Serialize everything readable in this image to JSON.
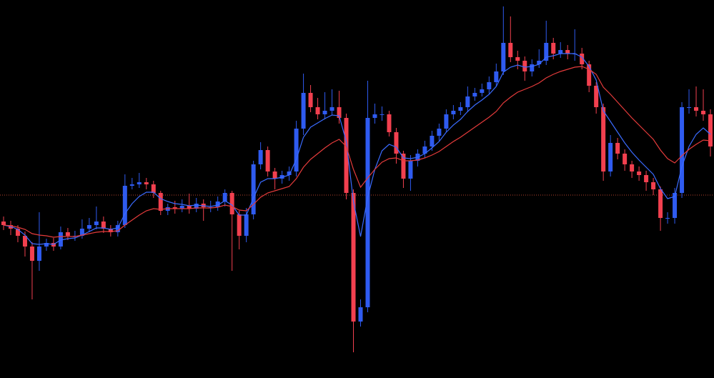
{
  "chart_data": {
    "type": "candlestick",
    "open": [
      219,
      214,
      209,
      199,
      184,
      164,
      184,
      189,
      184,
      204,
      199,
      199,
      209,
      214,
      219,
      209,
      204,
      214,
      269,
      271,
      274,
      271,
      259,
      234,
      239,
      237,
      241,
      237,
      244,
      239,
      239,
      247,
      259,
      229,
      199,
      229,
      299,
      319,
      289,
      279,
      284,
      289,
      349,
      399,
      379,
      369,
      374,
      379,
      364,
      259,
      79,
      99,
      364,
      369,
      369,
      344,
      314,
      279,
      304,
      314,
      324,
      339,
      349,
      369,
      374,
      379,
      394,
      399,
      404,
      414,
      429,
      469,
      449,
      444,
      429,
      439,
      444,
      469,
      454,
      459,
      454,
      454,
      439,
      409,
      379,
      289,
      329,
      314,
      299,
      289,
      284,
      274,
      264,
      224,
      224,
      259,
      379,
      379,
      374,
      369
    ],
    "high": [
      226,
      220,
      214,
      205,
      190,
      232,
      195,
      196,
      212,
      210,
      206,
      222,
      224,
      240,
      226,
      214,
      220,
      285,
      280,
      287,
      280,
      276,
      262,
      244,
      248,
      250,
      258,
      252,
      250,
      248,
      254,
      264,
      262,
      234,
      238,
      304,
      330,
      324,
      294,
      290,
      296,
      360,
      426,
      410,
      392,
      400,
      404,
      402,
      370,
      264,
      110,
      416,
      384,
      380,
      374,
      350,
      318,
      312,
      320,
      332,
      346,
      356,
      376,
      382,
      386,
      408,
      406,
      412,
      422,
      440,
      520,
      506,
      458,
      450,
      446,
      460,
      500,
      476,
      470,
      466,
      488,
      462,
      444,
      414,
      384,
      340,
      336,
      320,
      304,
      296,
      290,
      280,
      268,
      232,
      266,
      386,
      404,
      408,
      404,
      376
    ],
    "low": [
      207,
      200,
      190,
      170,
      110,
      150,
      178,
      178,
      180,
      193,
      192,
      195,
      204,
      208,
      203,
      198,
      198,
      210,
      264,
      266,
      264,
      252,
      228,
      228,
      230,
      232,
      230,
      232,
      220,
      232,
      234,
      240,
      150,
      180,
      190,
      222,
      292,
      282,
      264,
      272,
      276,
      282,
      340,
      372,
      362,
      362,
      368,
      356,
      250,
      36,
      72,
      92,
      356,
      360,
      338,
      300,
      266,
      262,
      296,
      308,
      318,
      332,
      344,
      362,
      368,
      372,
      388,
      394,
      398,
      408,
      424,
      442,
      432,
      416,
      422,
      434,
      438,
      446,
      448,
      446,
      444,
      432,
      400,
      370,
      276,
      282,
      306,
      290,
      280,
      276,
      262,
      256,
      206,
      216,
      216,
      252,
      370,
      366,
      360,
      310
    ],
    "close": [
      214,
      209,
      199,
      184,
      164,
      184,
      189,
      184,
      204,
      199,
      199,
      209,
      214,
      219,
      209,
      204,
      214,
      269,
      271,
      274,
      271,
      259,
      234,
      239,
      237,
      241,
      237,
      244,
      239,
      239,
      247,
      259,
      229,
      199,
      229,
      299,
      319,
      289,
      279,
      284,
      289,
      349,
      399,
      379,
      369,
      374,
      379,
      364,
      259,
      79,
      99,
      364,
      369,
      369,
      344,
      314,
      279,
      304,
      314,
      324,
      339,
      349,
      369,
      374,
      379,
      394,
      399,
      404,
      414,
      429,
      469,
      449,
      444,
      429,
      439,
      444,
      469,
      454,
      459,
      454,
      454,
      439,
      409,
      379,
      289,
      329,
      314,
      299,
      289,
      284,
      274,
      264,
      224,
      224,
      259,
      379,
      379,
      374,
      369,
      324
    ],
    "up_color": "#2f5bf0",
    "down_color": "#f2404f",
    "ylim": [
      0,
      529
    ],
    "series": [
      {
        "color": "#3a6bff",
        "values": [
          214,
          212,
          208,
          200,
          188,
          187,
          188,
          187,
          193,
          195,
          196,
          200,
          205,
          210,
          210,
          208,
          210,
          230,
          244,
          254,
          260,
          260,
          251,
          247,
          244,
          243,
          241,
          242,
          241,
          240,
          242,
          248,
          242,
          228,
          228,
          252,
          274,
          279,
          279,
          281,
          284,
          306,
          337,
          351,
          357,
          363,
          368,
          367,
          331,
          247,
          198,
          253,
          292,
          318,
          327,
          323,
          308,
          307,
          309,
          314,
          322,
          331,
          344,
          354,
          362,
          373,
          382,
          389,
          397,
          408,
          428,
          435,
          438,
          435,
          436,
          439,
          449,
          451,
          454,
          454,
          454,
          449,
          436,
          417,
          374,
          359,
          344,
          329,
          316,
          305,
          295,
          285,
          265,
          251,
          254,
          296,
          324,
          341,
          350,
          341
        ]
      },
      {
        "color": "#e53b3b",
        "values": [
          214,
          213,
          211,
          208,
          202,
          200,
          199,
          197,
          198,
          198,
          198,
          200,
          202,
          204,
          205,
          205,
          206,
          214,
          221,
          228,
          234,
          237,
          236,
          237,
          237,
          237,
          237,
          238,
          238,
          238,
          239,
          242,
          240,
          235,
          234,
          243,
          253,
          259,
          262,
          265,
          268,
          279,
          295,
          306,
          314,
          322,
          329,
          334,
          324,
          292,
          267,
          280,
          292,
          302,
          307,
          308,
          304,
          304,
          305,
          308,
          312,
          317,
          324,
          331,
          337,
          344,
          351,
          358,
          365,
          373,
          385,
          393,
          400,
          404,
          408,
          413,
          420,
          425,
          429,
          432,
          435,
          436,
          432,
          425,
          407,
          397,
          386,
          375,
          364,
          354,
          344,
          334,
          319,
          307,
          301,
          311,
          320,
          327,
          333,
          332
        ]
      }
    ],
    "price_line": {
      "value": 256,
      "color": "#b8452f"
    }
  }
}
